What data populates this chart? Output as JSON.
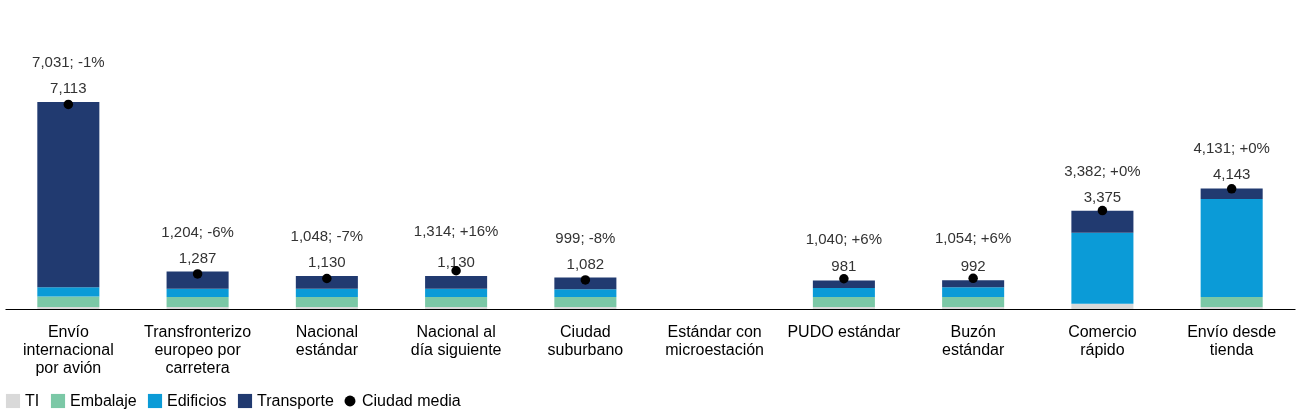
{
  "chart_data": {
    "type": "bar",
    "stacked": true,
    "categories": [
      "Envío internacional por avión",
      "Transfronterizo europeo por carretera",
      "Nacional estándar",
      "Nacional al día siguiente",
      "Ciudad suburbano",
      "Estándar con microestación",
      "PUDO estándar",
      "Buzón estándar",
      "Comercio rápido",
      "Envío desde tienda"
    ],
    "series": [
      {
        "name": "TI",
        "color": "#d9d9d9",
        "values": [
          70,
          70,
          70,
          70,
          70,
          null,
          70,
          70,
          180,
          70
        ]
      },
      {
        "name": "Embalaje",
        "color": "#7bc8a6",
        "values": [
          360,
          340,
          340,
          340,
          340,
          null,
          340,
          340,
          0,
          340
        ]
      },
      {
        "name": "Edificios",
        "color": "#0b9bd7",
        "values": [
          320,
          290,
          290,
          290,
          270,
          null,
          310,
          340,
          2440,
          3370
        ]
      },
      {
        "name": "Transporte",
        "color": "#213a70",
        "values": [
          6363,
          587,
          430,
          430,
          402,
          null,
          261,
          242,
          755,
          363
        ]
      },
      {
        "name": "Ciudad media",
        "type": "scatter",
        "color": "#000000",
        "marker": "circle",
        "values": [
          7031,
          1204,
          1048,
          1314,
          999,
          null,
          1040,
          1054,
          3382,
          4131
        ],
        "value_labels": [
          "7,031; -1%",
          "1,204; -6%",
          "1,048; -7%",
          "1,314; +16%",
          "999; -8%",
          null,
          "1,040; +6%",
          "1,054; +6%",
          "3,382; +0%",
          "4,131; +0%"
        ]
      }
    ],
    "totals": [
      "7,113",
      "1,287",
      "1,130",
      "1,130",
      "1,082",
      null,
      "981",
      "992",
      "3,375",
      "4,143"
    ],
    "legend": "bottom left",
    "grid": false
  }
}
